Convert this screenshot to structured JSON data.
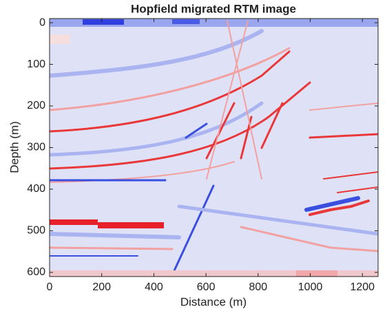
{
  "chart_data": {
    "type": "image",
    "title": "Hopfield migrated RTM image",
    "xlabel": "Distance (m)",
    "ylabel": "Depth (m)",
    "xlim": [
      0,
      1260
    ],
    "ylim": [
      610,
      -10
    ],
    "xticks": [
      0,
      200,
      400,
      600,
      800,
      1000,
      1200
    ],
    "yticks": [
      0,
      100,
      200,
      300,
      400,
      500,
      600
    ]
  }
}
